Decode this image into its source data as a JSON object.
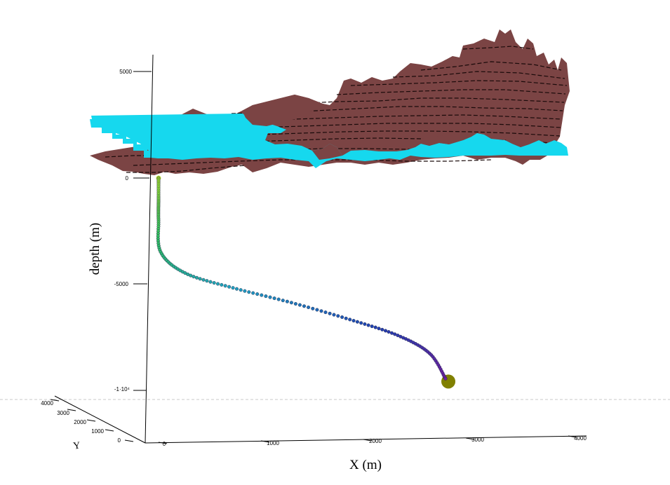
{
  "chart_data": {
    "type": "line3d",
    "title": "",
    "axes": {
      "x": {
        "label": "X (m)",
        "ticks": [
          "0",
          "1000",
          "2000",
          "3000",
          "4000"
        ]
      },
      "y": {
        "label": "Y",
        "ticks": [
          "0",
          "1000",
          "2000",
          "3000",
          "4000"
        ]
      },
      "z": {
        "label": "depth (m)",
        "ticks": [
          "5000",
          "0",
          "-5000",
          "-1·10⁴"
        ]
      }
    },
    "surfaces": [
      {
        "name": "terrain",
        "color": "#7a4040",
        "contour_color": "#000000",
        "contour_style": "dashed"
      },
      {
        "name": "sea level plane",
        "color": "#16d8ee"
      }
    ],
    "well_path": {
      "color_gradient": [
        "#a8e830",
        "#30c060",
        "#20a0c0",
        "#2040b0",
        "#7020a0"
      ],
      "points": [
        {
          "x": 0,
          "y": 0,
          "z": 0
        },
        {
          "x": 0,
          "y": 0,
          "z": -1000
        },
        {
          "x": 0,
          "y": 0,
          "z": -2000
        },
        {
          "x": 20,
          "y": 0,
          "z": -3500
        },
        {
          "x": 250,
          "y": 0,
          "z": -4500
        },
        {
          "x": 700,
          "y": 0,
          "z": -5200
        },
        {
          "x": 1250,
          "y": 0,
          "z": -5900
        },
        {
          "x": 1800,
          "y": 0,
          "z": -6700
        },
        {
          "x": 2250,
          "y": 0,
          "z": -7450
        },
        {
          "x": 2550,
          "y": 0,
          "z": -8300
        },
        {
          "x": 2700,
          "y": 0,
          "z": -9500
        }
      ],
      "target_marker_color": "#808000"
    }
  }
}
